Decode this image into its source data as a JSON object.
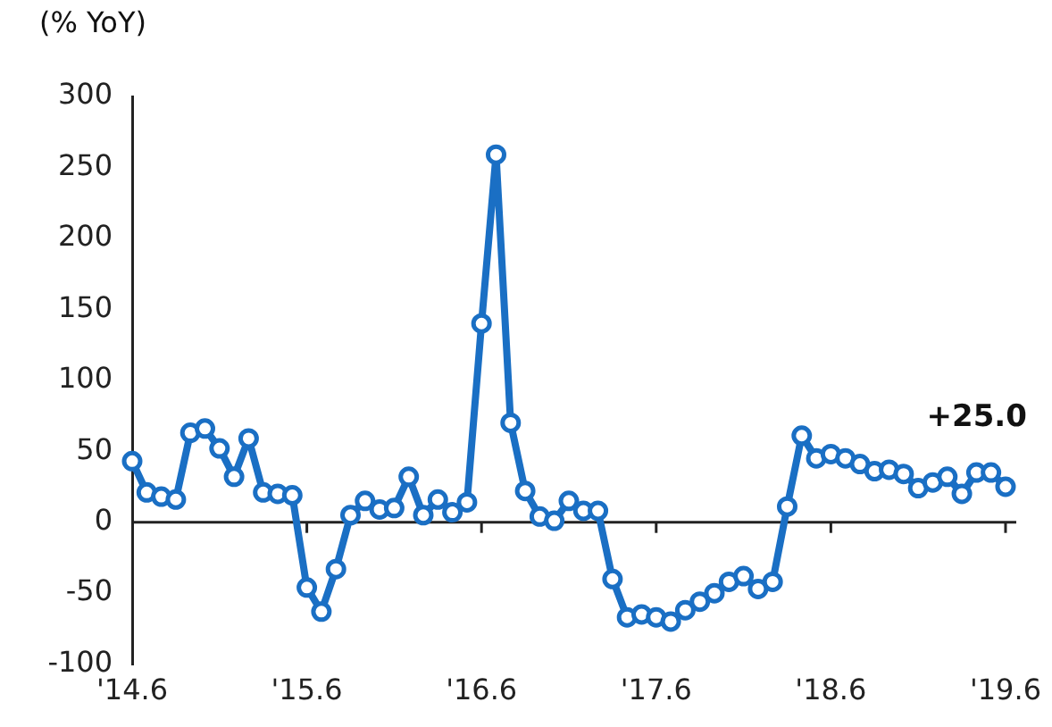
{
  "chart_data": {
    "type": "line",
    "ylabel": "(% YoY)",
    "categories": [
      "'14.6",
      null,
      null,
      null,
      null,
      null,
      null,
      null,
      null,
      null,
      null,
      null,
      "'15.6",
      null,
      null,
      null,
      null,
      null,
      null,
      null,
      null,
      null,
      null,
      null,
      "'16.6",
      null,
      null,
      null,
      null,
      null,
      null,
      null,
      null,
      null,
      null,
      null,
      "'17.6",
      null,
      null,
      null,
      null,
      null,
      null,
      null,
      null,
      null,
      null,
      null,
      "'18.6",
      null,
      null,
      null,
      null,
      null,
      null,
      null,
      null,
      null,
      null,
      null,
      "'19.6"
    ],
    "series": [
      {
        "color": "#1a6fc4",
        "values": [
          43,
          21,
          18,
          16,
          63,
          66,
          52,
          32,
          59,
          21,
          20,
          19,
          -46,
          -63,
          -33,
          5,
          15,
          9,
          10,
          32,
          5,
          16,
          7,
          14,
          140,
          259,
          70,
          22,
          4,
          1,
          15,
          8,
          8,
          -40,
          -67,
          -65,
          -67,
          -70,
          -62,
          -56,
          -50,
          -42,
          -38,
          -47,
          -42,
          11,
          61,
          45,
          48,
          45,
          41,
          36,
          37,
          34,
          24,
          28,
          32,
          20,
          35,
          35,
          25
        ]
      }
    ],
    "ylim": [
      -100,
      300
    ],
    "yticks": [
      -100,
      -50,
      0,
      50,
      100,
      150,
      200,
      250,
      300
    ],
    "grid": false,
    "legend": false,
    "marker": "circle",
    "line_style": "solid",
    "ref_lines": [
      {
        "axis": "y",
        "value": 0
      }
    ],
    "annotations": [
      {
        "text": "+25.0",
        "x": "'19.6",
        "y": 25
      }
    ]
  }
}
